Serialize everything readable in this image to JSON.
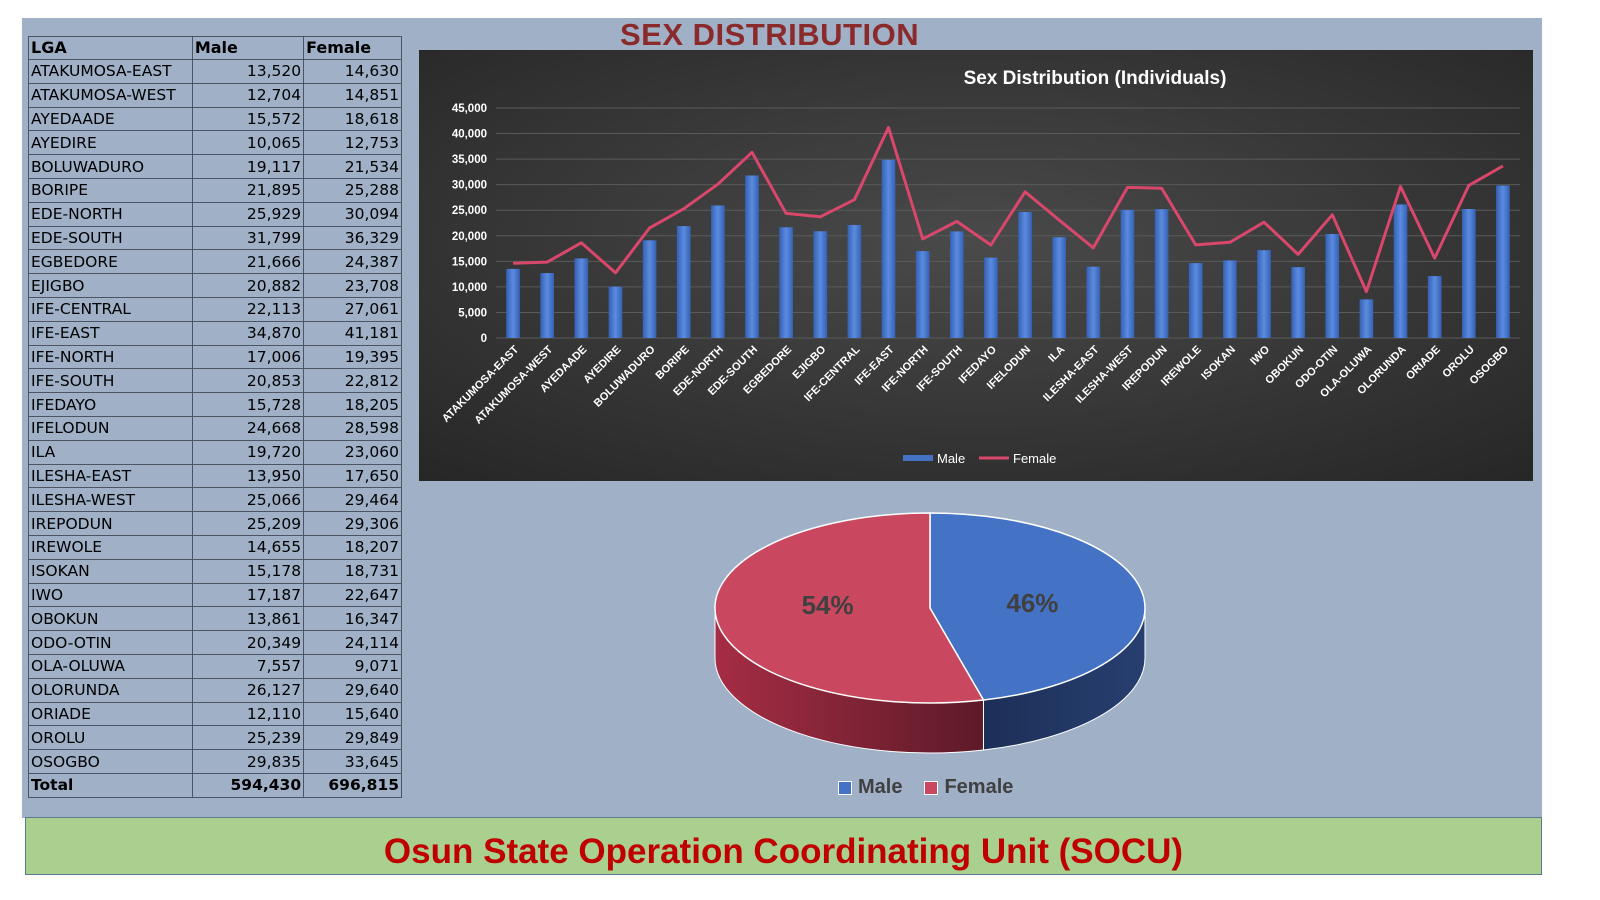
{
  "page_title": "SEX DISTRIBUTION",
  "footer": "Osun State Operation Coordinating Unit (SOCU)",
  "table": {
    "headers": [
      "LGA",
      "Male",
      "Female"
    ],
    "rows": [
      [
        "ATAKUMOSA-EAST",
        "13,520",
        "14,630"
      ],
      [
        "ATAKUMOSA-WEST",
        "12,704",
        "14,851"
      ],
      [
        "AYEDAADE",
        "15,572",
        "18,618"
      ],
      [
        "AYEDIRE",
        "10,065",
        "12,753"
      ],
      [
        "BOLUWADURO",
        "19,117",
        "21,534"
      ],
      [
        "BORIPE",
        "21,895",
        "25,288"
      ],
      [
        "EDE-NORTH",
        "25,929",
        "30,094"
      ],
      [
        "EDE-SOUTH",
        "31,799",
        "36,329"
      ],
      [
        "EGBEDORE",
        "21,666",
        "24,387"
      ],
      [
        "EJIGBO",
        "20,882",
        "23,708"
      ],
      [
        "IFE-CENTRAL",
        "22,113",
        "27,061"
      ],
      [
        "IFE-EAST",
        "34,870",
        "41,181"
      ],
      [
        "IFE-NORTH",
        "17,006",
        "19,395"
      ],
      [
        "IFE-SOUTH",
        "20,853",
        "22,812"
      ],
      [
        "IFEDAYO",
        "15,728",
        "18,205"
      ],
      [
        "IFELODUN",
        "24,668",
        "28,598"
      ],
      [
        "ILA",
        "19,720",
        "23,060"
      ],
      [
        "ILESHA-EAST",
        "13,950",
        "17,650"
      ],
      [
        "ILESHA-WEST",
        "25,066",
        "29,464"
      ],
      [
        "IREPODUN",
        "25,209",
        "29,306"
      ],
      [
        "IREWOLE",
        "14,655",
        "18,207"
      ],
      [
        "ISOKAN",
        "15,178",
        "18,731"
      ],
      [
        "IWO",
        "17,187",
        "22,647"
      ],
      [
        "OBOKUN",
        "13,861",
        "16,347"
      ],
      [
        "ODO-OTIN",
        "20,349",
        "24,114"
      ],
      [
        "OLA-OLUWA",
        "7,557",
        "9,071"
      ],
      [
        "OLORUNDA",
        "26,127",
        "29,640"
      ],
      [
        "ORIADE",
        "12,110",
        "15,640"
      ],
      [
        "OROLU",
        "25,239",
        "29,849"
      ],
      [
        "OSOGBO",
        "29,835",
        "33,645"
      ]
    ],
    "total": [
      "Total",
      "594,430",
      "696,815"
    ]
  },
  "chart_data": [
    {
      "type": "bar",
      "title": "Sex Distribution (Individuals)",
      "categories": [
        "ATAKUMOSA-EAST",
        "ATAKUMOSA-WEST",
        "AYEDAADE",
        "AYEDIRE",
        "BOLUWADURO",
        "BORIPE",
        "EDE-NORTH",
        "EDE-SOUTH",
        "EGBEDORE",
        "EJIGBO",
        "IFE-CENTRAL",
        "IFE-EAST",
        "IFE-NORTH",
        "IFE-SOUTH",
        "IFEDAYO",
        "IFELODUN",
        "ILA",
        "ILESHA-EAST",
        "ILESHA-WEST",
        "IREPODUN",
        "IREWOLE",
        "ISOKAN",
        "IWO",
        "OBOKUN",
        "ODO-OTIN",
        "OLA-OLUWA",
        "OLORUNDA",
        "ORIADE",
        "OROLU",
        "OSOGBO"
      ],
      "series": [
        {
          "name": "Male",
          "type": "bar",
          "color": "#4472c4",
          "values": [
            13520,
            12704,
            15572,
            10065,
            19117,
            21895,
            25929,
            31799,
            21666,
            20882,
            22113,
            34870,
            17006,
            20853,
            15728,
            24668,
            19720,
            13950,
            25066,
            25209,
            14655,
            15178,
            17187,
            13861,
            20349,
            7557,
            26127,
            12110,
            25239,
            29835
          ]
        },
        {
          "name": "Female",
          "type": "line",
          "color": "#d9476b",
          "values": [
            14630,
            14851,
            18618,
            12753,
            21534,
            25288,
            30094,
            36329,
            24387,
            23708,
            27061,
            41181,
            19395,
            22812,
            18205,
            28598,
            23060,
            17650,
            29464,
            29306,
            18207,
            18731,
            22647,
            16347,
            24114,
            9071,
            29640,
            15640,
            29849,
            33645
          ]
        }
      ],
      "ylim": [
        0,
        45000
      ],
      "yticks": [
        "0",
        "5,000",
        "10,000",
        "15,000",
        "20,000",
        "25,000",
        "30,000",
        "35,000",
        "40,000",
        "45,000"
      ],
      "legend": "bottom",
      "background": "#3a3a3a"
    },
    {
      "type": "pie",
      "categories": [
        "Male",
        "Female"
      ],
      "values": [
        46,
        54
      ],
      "labels": [
        "46%",
        "54%"
      ],
      "colors": [
        "#4472c4",
        "#c9485f"
      ],
      "legend": "bottom"
    }
  ]
}
